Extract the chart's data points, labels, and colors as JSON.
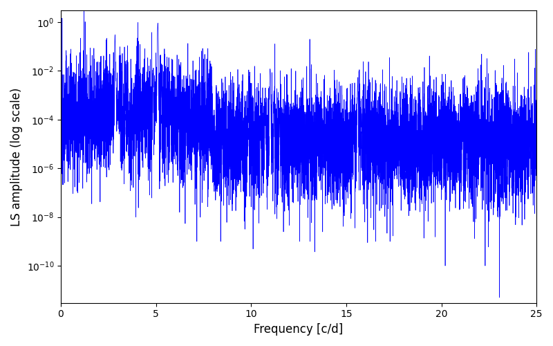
{
  "title": "",
  "xlabel": "Frequency [c/d]",
  "ylabel": "LS amplitude (log scale)",
  "line_color": "#0000ff",
  "line_width": 0.5,
  "xmin": 0,
  "xmax": 25,
  "ymin": 3e-12,
  "ymax": 3,
  "yscale": "log",
  "figwidth": 8.0,
  "figheight": 5.0,
  "dpi": 100,
  "background_noise_mean_log": -11.5,
  "background_noise_sigma": 2.8,
  "seed": 12345
}
